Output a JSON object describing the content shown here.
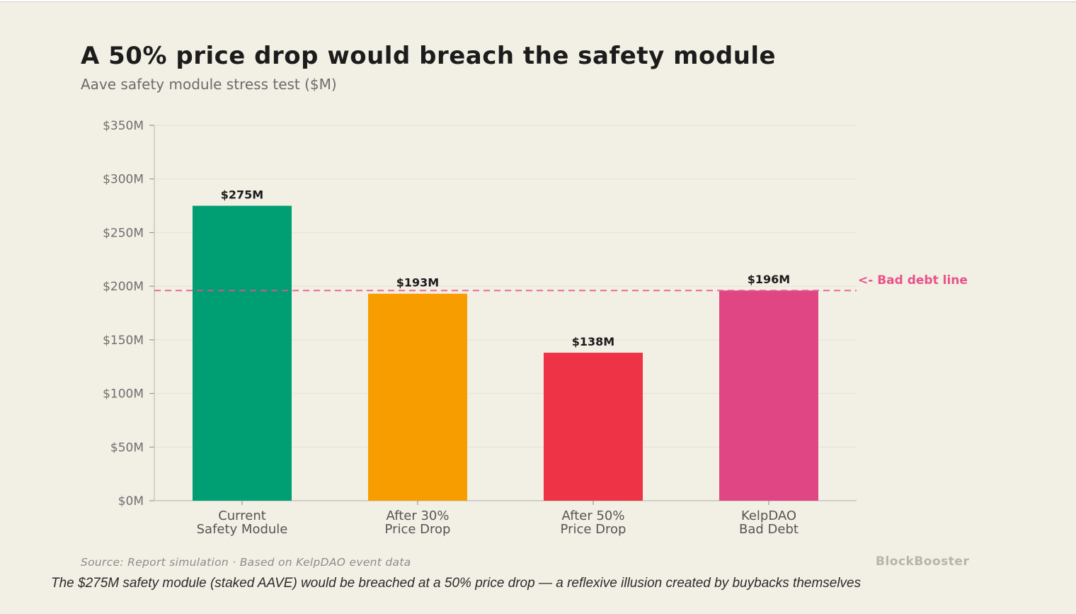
{
  "chart_data": {
    "type": "bar",
    "title": "A 50% price drop would breach the safety module",
    "subtitle": "Aave safety module stress test ($M)",
    "categories": [
      [
        "Current",
        "Safety Module"
      ],
      [
        "After 30%",
        "Price Drop"
      ],
      [
        "After 50%",
        "Price Drop"
      ],
      [
        "KelpDAO",
        "Bad Debt"
      ]
    ],
    "values": [
      275,
      193,
      138,
      196
    ],
    "value_labels": [
      "$275M",
      "$193M",
      "$138M",
      "$196M"
    ],
    "colors": [
      "#009e73",
      "#f79d00",
      "#ef3346",
      "#e04683"
    ],
    "ylim": [
      0,
      350
    ],
    "yticks": [
      0,
      50,
      100,
      150,
      200,
      250,
      300,
      350
    ],
    "ytick_labels": [
      "$0M",
      "$50M",
      "$100M",
      "$150M",
      "$200M",
      "$250M",
      "$300M",
      "$350M"
    ],
    "grid": true,
    "reference_line": {
      "value": 196,
      "label": "<- Bad debt line",
      "color": "#e8538a",
      "style": "dashed"
    },
    "source": "Source: Report simulation · Based on KelpDAO event data",
    "brand": "BlockBooster"
  },
  "caption": "The $275M safety module (staked AAVE) would be breached at a 50% price drop — a reflexive illusion created by buybacks themselves"
}
